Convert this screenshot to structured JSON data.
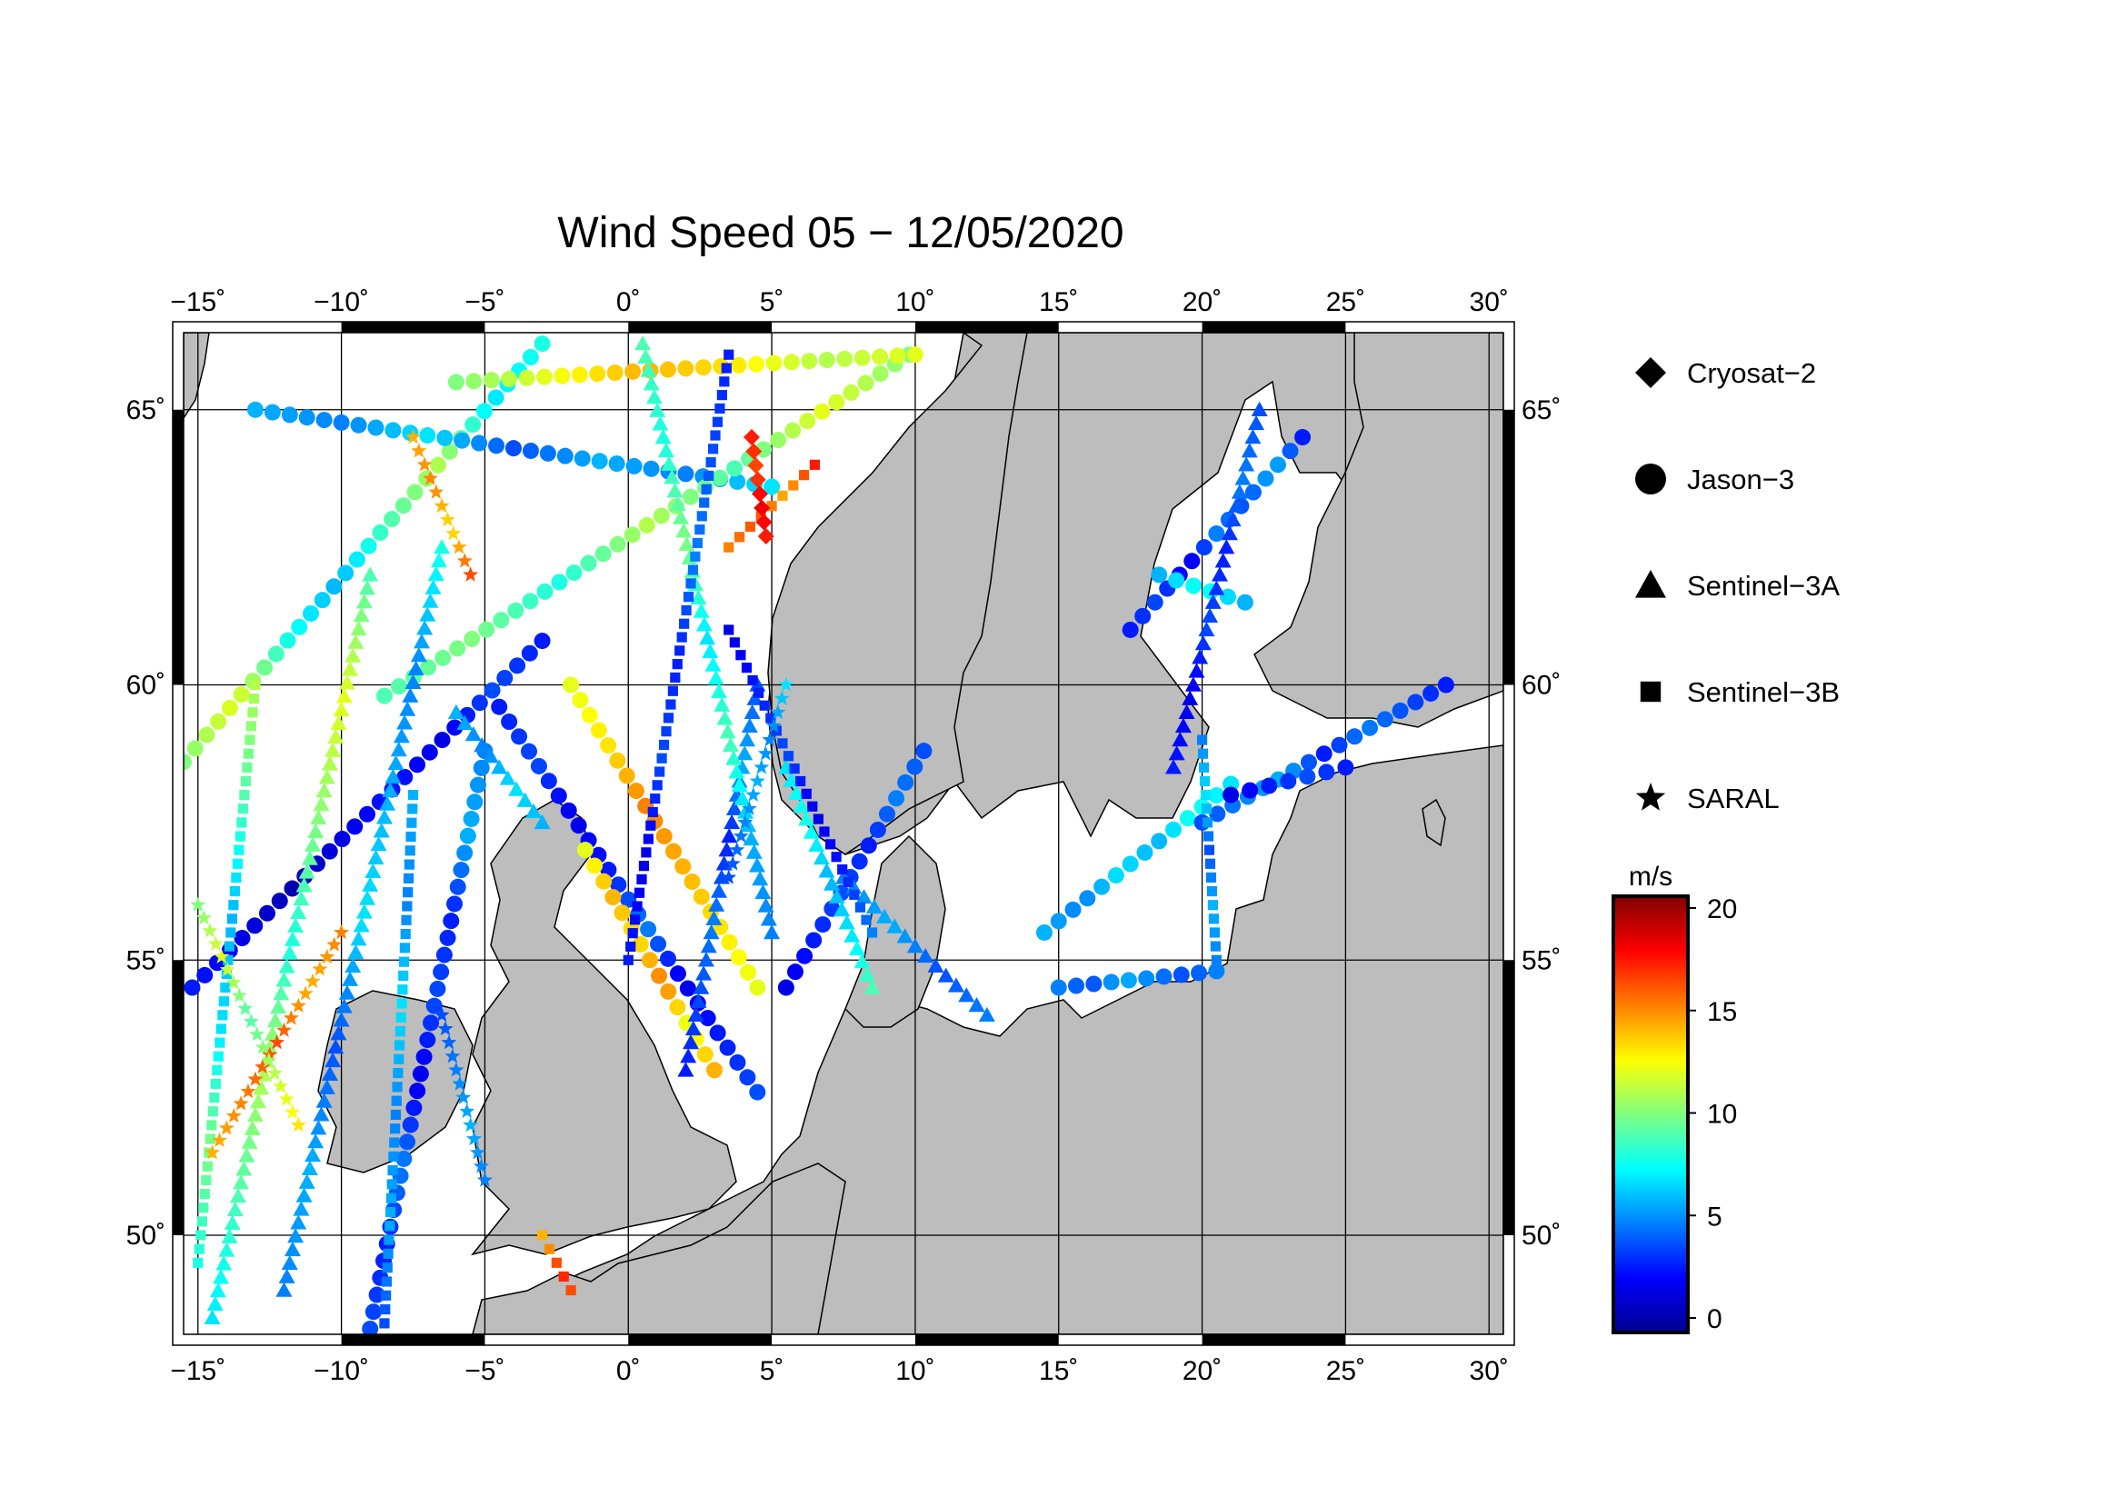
{
  "title": "Wind Speed 05 − 12/05/2020",
  "map": {
    "lon_range": [
      -15.5,
      30.5
    ],
    "lat_range": [
      48.2,
      66.4
    ],
    "lon_ticks": [
      -15,
      -10,
      -5,
      0,
      5,
      10,
      15,
      20,
      25,
      30
    ],
    "lat_ticks": [
      50,
      55,
      60,
      65
    ],
    "lon_tick_labels": [
      "−15˚",
      "−10˚",
      "−5˚",
      "0˚",
      "5˚",
      "10˚",
      "15˚",
      "20˚",
      "25˚",
      "30˚"
    ],
    "lat_tick_labels": [
      "50˚",
      "55˚",
      "60˚",
      "65˚"
    ],
    "grid": true,
    "land_color": "#bdbdbd",
    "sea_color": "#ffffff",
    "coastline_color": "#000000"
  },
  "legend": {
    "placement": "right",
    "items": [
      {
        "label": "Cryosat−2",
        "icon": "diamond"
      },
      {
        "label": "Jason−3",
        "icon": "circle"
      },
      {
        "label": "Sentinel−3A",
        "icon": "triangle"
      },
      {
        "label": "Sentinel−3B",
        "icon": "square"
      },
      {
        "label": "SARAL",
        "icon": "star"
      }
    ]
  },
  "colorbar": {
    "unit": "m/s",
    "min": 0,
    "max": 20,
    "tick_values": [
      0,
      5,
      10,
      15,
      20
    ],
    "tick_labels": [
      "0",
      "5",
      "10",
      "15",
      "20"
    ],
    "colormap": "jet"
  },
  "chart_data": {
    "type": "scatter",
    "title": "Wind Speed 05 − 12/05/2020",
    "value_unit": "m/s",
    "series": [
      {
        "name": "Jason−3",
        "marker": "circle",
        "tracks": [
          {
            "from": [
              -15.5,
              58.6
            ],
            "to": [
              -3.0,
              66.2
            ],
            "v": [
              10,
              12,
              8,
              6,
              9,
              11,
              7,
              8
            ]
          },
          {
            "from": [
              -9.0,
              48.3
            ],
            "to": [
              -5.0,
              58.8
            ],
            "v": [
              4,
              3,
              5,
              2,
              4,
              3,
              6,
              5
            ]
          },
          {
            "from": [
              -15.2,
              54.5
            ],
            "to": [
              -3.0,
              60.8
            ],
            "v": [
              3,
              2,
              1,
              2,
              3,
              2,
              4,
              3
            ]
          },
          {
            "from": [
              -4.5,
              59.6
            ],
            "to": [
              4.5,
              52.6
            ],
            "v": [
              3,
              4,
              2,
              3,
              5,
              2,
              3,
              4
            ]
          },
          {
            "from": [
              -1.5,
              57.0
            ],
            "to": [
              3.0,
              53.0
            ],
            "v": [
              12,
              14,
              13,
              15,
              12,
              14
            ]
          },
          {
            "from": [
              -2.0,
              60.0
            ],
            "to": [
              4.5,
              54.5
            ],
            "v": [
              12,
              13,
              15,
              14,
              13,
              12
            ]
          },
          {
            "from": [
              -13.0,
              65.0
            ],
            "to": [
              5.0,
              63.6
            ],
            "v": [
              6,
              5,
              7,
              4,
              6,
              5,
              7
            ]
          },
          {
            "from": [
              -8.5,
              59.8
            ],
            "to": [
              9.8,
              66.0
            ],
            "v": [
              9,
              10,
              8,
              11,
              9,
              12,
              10
            ]
          },
          {
            "from": [
              -6.0,
              65.5
            ],
            "to": [
              10.0,
              66.0
            ],
            "v": [
              10,
              12,
              14,
              13,
              11,
              12
            ]
          },
          {
            "from": [
              5.5,
              54.5
            ],
            "to": [
              10.3,
              58.8
            ],
            "v": [
              2,
              3,
              4,
              3,
              5,
              4
            ]
          },
          {
            "from": [
              14.5,
              55.5
            ],
            "to": [
              21.0,
              58.2
            ],
            "v": [
              6,
              5,
              7,
              6,
              8,
              7
            ]
          },
          {
            "from": [
              15.0,
              54.5
            ],
            "to": [
              20.5,
              54.8
            ],
            "v": [
              5,
              4,
              6,
              5,
              4,
              5
            ]
          },
          {
            "from": [
              20.0,
              57.5
            ],
            "to": [
              28.5,
              60.0
            ],
            "v": [
              4,
              5,
              6,
              3,
              5,
              4,
              3
            ]
          },
          {
            "from": [
              17.5,
              61.0
            ],
            "to": [
              23.5,
              64.5
            ],
            "v": [
              3,
              4,
              2,
              5,
              4,
              6,
              3
            ]
          },
          {
            "from": [
              18.5,
              62.0
            ],
            "to": [
              21.5,
              61.5
            ],
            "v": [
              6,
              7,
              8,
              7,
              6
            ]
          },
          {
            "from": [
              21.0,
              58.0
            ],
            "to": [
              25.0,
              58.5
            ],
            "v": [
              2,
              3,
              4,
              3
            ]
          }
        ]
      },
      {
        "name": "Sentinel−3A",
        "marker": "triangle",
        "tracks": [
          {
            "from": [
              -14.5,
              48.5
            ],
            "to": [
              -9.0,
              62.0
            ],
            "v": [
              7,
              9,
              11,
              8,
              10,
              12,
              9
            ]
          },
          {
            "from": [
              -12.0,
              49.0
            ],
            "to": [
              -6.5,
              62.5
            ],
            "v": [
              5,
              6,
              4,
              7,
              6,
              5,
              8
            ]
          },
          {
            "from": [
              2.0,
              53.0
            ],
            "to": [
              4.5,
              60.0
            ],
            "v": [
              3,
              4,
              5,
              3,
              6,
              4
            ]
          },
          {
            "from": [
              0.5,
              66.2
            ],
            "to": [
              5.0,
              55.5
            ],
            "v": [
              9,
              8,
              10,
              7,
              9,
              6,
              5
            ]
          },
          {
            "from": [
              5.5,
              58.5
            ],
            "to": [
              8.5,
              54.5
            ],
            "v": [
              7,
              8,
              6,
              7,
              9
            ]
          },
          {
            "from": [
              19.0,
              58.5
            ],
            "to": [
              22.0,
              65.0
            ],
            "v": [
              3,
              2,
              4,
              3,
              5,
              4
            ]
          },
          {
            "from": [
              7.5,
              56.5
            ],
            "to": [
              12.5,
              54.0
            ],
            "v": [
              5,
              6,
              4,
              5
            ]
          },
          {
            "from": [
              -6.0,
              59.5
            ],
            "to": [
              -3.0,
              57.5
            ],
            "v": [
              6,
              5,
              7,
              6
            ]
          }
        ]
      },
      {
        "name": "Sentinel−3B",
        "marker": "square",
        "tracks": [
          {
            "from": [
              -15.0,
              49.5
            ],
            "to": [
              -13.0,
              60.0
            ],
            "v": [
              8,
              10,
              7,
              6,
              9,
              11
            ]
          },
          {
            "from": [
              -8.5,
              48.4
            ],
            "to": [
              -7.5,
              58.0
            ],
            "v": [
              4,
              6,
              5,
              7,
              5,
              6
            ]
          },
          {
            "from": [
              0.0,
              55.0
            ],
            "to": [
              3.5,
              66.0
            ],
            "v": [
              3,
              2,
              4,
              3,
              5,
              4,
              3
            ]
          },
          {
            "from": [
              3.5,
              61.0
            ],
            "to": [
              8.5,
              55.5
            ],
            "v": [
              2,
              3,
              4,
              2,
              3,
              5
            ]
          },
          {
            "from": [
              20.5,
              55.0
            ],
            "to": [
              20.0,
              59.0
            ],
            "v": [
              5,
              6,
              4,
              7,
              5
            ]
          },
          {
            "from": [
              -3.0,
              50.0
            ],
            "to": [
              -2.0,
              49.0
            ],
            "v": [
              14,
              15,
              17,
              16
            ]
          },
          {
            "from": [
              3.5,
              62.5
            ],
            "to": [
              6.5,
              64.0
            ],
            "v": [
              15,
              16,
              14,
              17
            ]
          }
        ]
      },
      {
        "name": "SARAL",
        "marker": "star",
        "tracks": [
          {
            "from": [
              -14.5,
              51.5
            ],
            "to": [
              -10.0,
              55.5
            ],
            "v": [
              14,
              15,
              16,
              14,
              15
            ]
          },
          {
            "from": [
              -15.0,
              56.0
            ],
            "to": [
              -11.5,
              52.0
            ],
            "v": [
              10,
              12,
              9,
              11,
              13
            ]
          },
          {
            "from": [
              3.5,
              56.5
            ],
            "to": [
              5.5,
              60.0
            ],
            "v": [
              4,
              5,
              6,
              5,
              7
            ]
          },
          {
            "from": [
              -7.5,
              64.5
            ],
            "to": [
              -5.5,
              62.0
            ],
            "v": [
              14,
              15,
              13,
              16
            ]
          },
          {
            "from": [
              -6.5,
              54.0
            ],
            "to": [
              -5.0,
              51.0
            ],
            "v": [
              4,
              5,
              6,
              5
            ]
          }
        ]
      },
      {
        "name": "Cryosat−2",
        "marker": "diamond",
        "tracks": [
          {
            "from": [
              4.3,
              64.5
            ],
            "to": [
              4.8,
              62.7
            ],
            "v": [
              17,
              16,
              18,
              17
            ]
          }
        ]
      }
    ]
  }
}
